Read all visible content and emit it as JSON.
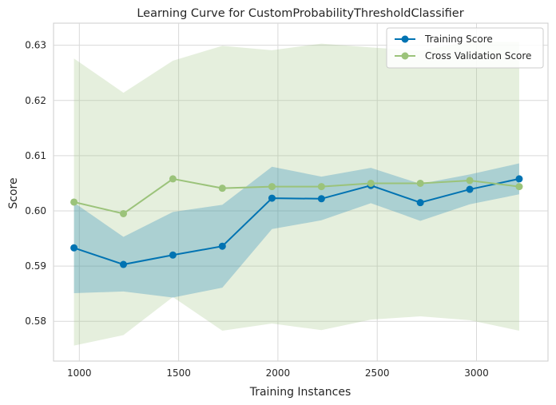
{
  "chart_data": {
    "type": "line",
    "title": "Learning Curve for CustomProbabilityThresholdClassifier",
    "xlabel": "Training Instances",
    "ylabel": "Score",
    "xlim": [
      870,
      3360
    ],
    "ylim": [
      0.5728,
      0.634
    ],
    "xticks": [
      1000,
      1500,
      2000,
      2500,
      3000
    ],
    "xtick_labels": [
      "1000",
      "1500",
      "2000",
      "2500",
      "3000"
    ],
    "yticks": [
      0.58,
      0.59,
      0.6,
      0.61,
      0.62,
      0.63
    ],
    "ytick_labels": [
      "0.58",
      "0.59",
      "0.60",
      "0.61",
      "0.62",
      "0.63"
    ],
    "grid": true,
    "legend_position": "top-right",
    "x": [
      973,
      1222,
      1471,
      1720,
      1970,
      2219,
      2468,
      2717,
      2966,
      3215
    ],
    "series": [
      {
        "name": "Training Score",
        "color": "#0173b2",
        "values": [
          0.5933,
          0.5903,
          0.592,
          0.5936,
          0.6023,
          0.6022,
          0.6046,
          0.6015,
          0.6039,
          0.6058
        ],
        "band_upper": [
          0.6015,
          0.5953,
          0.5998,
          0.6011,
          0.608,
          0.6062,
          0.6078,
          0.6049,
          0.6066,
          0.6086
        ],
        "band_lower": [
          0.5851,
          0.5854,
          0.5843,
          0.5861,
          0.5967,
          0.5983,
          0.6014,
          0.5982,
          0.6012,
          0.603
        ]
      },
      {
        "name": "Cross Validation Score",
        "color": "#9bc37a",
        "values": [
          0.6016,
          0.5995,
          0.6058,
          0.6041,
          0.6044,
          0.6044,
          0.605,
          0.605,
          0.6055,
          0.6044
        ],
        "band_upper": [
          0.6276,
          0.6214,
          0.6272,
          0.6299,
          0.6291,
          0.6303,
          0.6296,
          0.629,
          0.6307,
          0.6306
        ],
        "band_lower": [
          0.5756,
          0.5775,
          0.5844,
          0.5783,
          0.5796,
          0.5784,
          0.5803,
          0.5809,
          0.5802,
          0.5783
        ]
      }
    ]
  }
}
